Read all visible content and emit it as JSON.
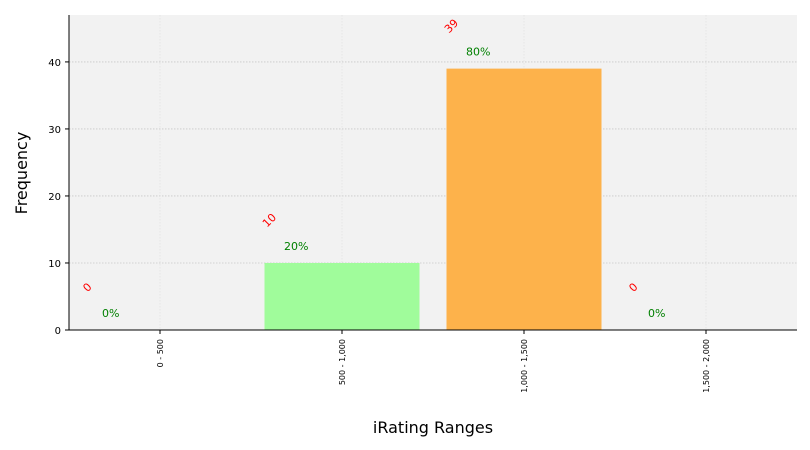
{
  "chart_data": {
    "type": "bar",
    "categories": [
      "0 - 500",
      "500 - 1,000",
      "1,000 - 1,500",
      "1,500 - 2,000"
    ],
    "values": [
      0,
      10,
      39,
      0
    ],
    "percent_labels": [
      "0%",
      "20%",
      "80%",
      "0%"
    ],
    "count_labels": [
      "0",
      "10",
      "39",
      "0"
    ],
    "bar_colors": [
      "#a0fc9b",
      "#a0fc9b",
      "#fdb24b",
      "#a0fc9b"
    ],
    "xlabel": "iRating Ranges",
    "ylabel": "Frequency",
    "ylim": [
      0,
      47
    ],
    "yticks": [
      0,
      10,
      20,
      30,
      40
    ],
    "grid": true,
    "plot_background": "#f2f2f2",
    "count_label_color": "#ff0000",
    "percent_label_color": "#008000"
  }
}
